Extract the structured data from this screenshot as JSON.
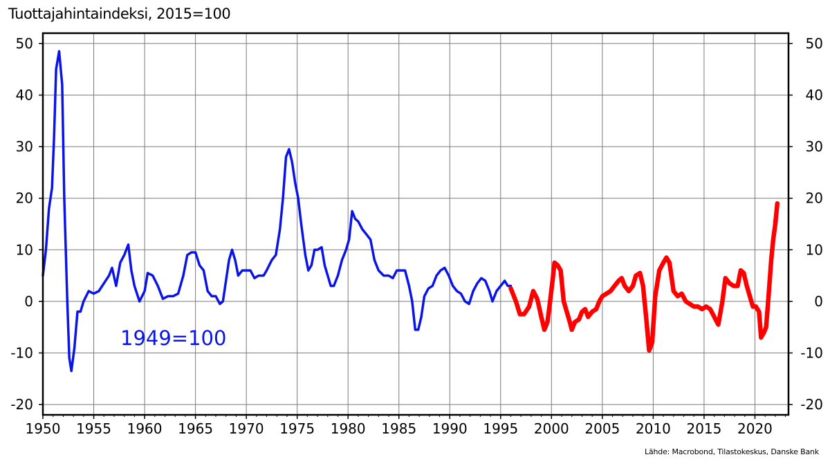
{
  "chart_data": {
    "type": "line",
    "title": "Tuottajahintaindeksi, 2015=100",
    "source": "Lähde: Macrobond, Tilastokeskus, Danske Bank",
    "annotation": "1949=100",
    "xlabel": "",
    "ylabel": "",
    "xlim": [
      1950,
      2023.3
    ],
    "ylim": [
      -22,
      52
    ],
    "grid": true,
    "axes": "left and right",
    "x_ticks": [
      1950,
      1955,
      1960,
      1965,
      1970,
      1975,
      1980,
      1985,
      1990,
      1995,
      2000,
      2005,
      2010,
      2015,
      2020
    ],
    "x_tick_labels": [
      "1950",
      "1955",
      "1960",
      "1965",
      "1970",
      "1975",
      "1980",
      "1985",
      "1990",
      "1995",
      "2000",
      "2005",
      "2010",
      "2015",
      "2020"
    ],
    "y_ticks": [
      50,
      40,
      30,
      20,
      10,
      0,
      -10,
      -20
    ],
    "y_tick_labels": [
      "50",
      "40",
      "30",
      "20",
      "10",
      "0",
      "-10",
      "-20"
    ],
    "colors": {
      "series_1949": "#0a14e6",
      "series_2015": "#ff0000"
    },
    "series": [
      {
        "points": [
          [
            1950.0,
            5
          ],
          [
            1950.3,
            10
          ],
          [
            1950.6,
            18
          ],
          [
            1950.9,
            22
          ],
          [
            1951.1,
            32
          ],
          [
            1951.3,
            45
          ],
          [
            1951.6,
            48.5
          ],
          [
            1951.9,
            42
          ],
          [
            1952.1,
            20
          ],
          [
            1952.4,
            0
          ],
          [
            1952.6,
            -11
          ],
          [
            1952.8,
            -13.5
          ],
          [
            1953.1,
            -9
          ],
          [
            1953.4,
            -2
          ],
          [
            1953.7,
            -2
          ],
          [
            1954.0,
            0
          ],
          [
            1954.5,
            2
          ],
          [
            1955.0,
            1.5
          ],
          [
            1955.5,
            2
          ],
          [
            1956.0,
            3.5
          ],
          [
            1956.5,
            5
          ],
          [
            1956.8,
            6.5
          ],
          [
            1957.2,
            3
          ],
          [
            1957.6,
            7.5
          ],
          [
            1958.0,
            9
          ],
          [
            1958.4,
            11
          ],
          [
            1958.7,
            6
          ],
          [
            1959.0,
            3
          ],
          [
            1959.5,
            0
          ],
          [
            1960.0,
            2
          ],
          [
            1960.3,
            5.5
          ],
          [
            1960.8,
            5
          ],
          [
            1961.3,
            3
          ],
          [
            1961.8,
            0.5
          ],
          [
            1962.3,
            1
          ],
          [
            1962.8,
            1
          ],
          [
            1963.3,
            1.5
          ],
          [
            1963.8,
            5
          ],
          [
            1964.2,
            9
          ],
          [
            1964.6,
            9.5
          ],
          [
            1965.0,
            9.5
          ],
          [
            1965.4,
            7
          ],
          [
            1965.8,
            6
          ],
          [
            1966.2,
            2
          ],
          [
            1966.6,
            1
          ],
          [
            1967.0,
            1
          ],
          [
            1967.4,
            -0.5
          ],
          [
            1967.7,
            0
          ],
          [
            1968.0,
            4
          ],
          [
            1968.3,
            8
          ],
          [
            1968.6,
            10
          ],
          [
            1968.9,
            8
          ],
          [
            1969.2,
            5
          ],
          [
            1969.6,
            6
          ],
          [
            1970.0,
            6
          ],
          [
            1970.4,
            6
          ],
          [
            1970.8,
            4.5
          ],
          [
            1971.2,
            5
          ],
          [
            1971.7,
            5
          ],
          [
            1972.0,
            6
          ],
          [
            1972.5,
            8
          ],
          [
            1972.9,
            9
          ],
          [
            1973.3,
            14
          ],
          [
            1973.6,
            20
          ],
          [
            1973.9,
            28
          ],
          [
            1974.2,
            29.5
          ],
          [
            1974.5,
            27
          ],
          [
            1974.8,
            23
          ],
          [
            1975.1,
            20
          ],
          [
            1975.4,
            15
          ],
          [
            1975.8,
            9
          ],
          [
            1976.1,
            6
          ],
          [
            1976.4,
            7
          ],
          [
            1976.7,
            10
          ],
          [
            1977.0,
            10
          ],
          [
            1977.4,
            10.5
          ],
          [
            1977.7,
            7
          ],
          [
            1978.0,
            5
          ],
          [
            1978.3,
            3
          ],
          [
            1978.6,
            3
          ],
          [
            1979.0,
            5
          ],
          [
            1979.4,
            8
          ],
          [
            1979.8,
            10
          ],
          [
            1980.1,
            12
          ],
          [
            1980.4,
            17.5
          ],
          [
            1980.7,
            16
          ],
          [
            1981.0,
            15.5
          ],
          [
            1981.4,
            14
          ],
          [
            1981.8,
            13
          ],
          [
            1982.2,
            12
          ],
          [
            1982.6,
            8
          ],
          [
            1983.0,
            6
          ],
          [
            1983.5,
            5
          ],
          [
            1984.0,
            5
          ],
          [
            1984.4,
            4.5
          ],
          [
            1984.8,
            6
          ],
          [
            1985.2,
            6
          ],
          [
            1985.6,
            6
          ],
          [
            1986.0,
            3
          ],
          [
            1986.3,
            0
          ],
          [
            1986.6,
            -5.5
          ],
          [
            1986.9,
            -5.5
          ],
          [
            1987.2,
            -3
          ],
          [
            1987.5,
            1
          ],
          [
            1987.9,
            2.5
          ],
          [
            1988.3,
            3
          ],
          [
            1988.7,
            5
          ],
          [
            1989.1,
            6
          ],
          [
            1989.5,
            6.5
          ],
          [
            1989.9,
            5
          ],
          [
            1990.3,
            3
          ],
          [
            1990.7,
            2
          ],
          [
            1991.1,
            1.5
          ],
          [
            1991.5,
            0
          ],
          [
            1991.9,
            -0.5
          ],
          [
            1992.3,
            2
          ],
          [
            1992.7,
            3.5
          ],
          [
            1993.1,
            4.5
          ],
          [
            1993.5,
            4
          ],
          [
            1993.9,
            2
          ],
          [
            1994.2,
            0
          ],
          [
            1994.6,
            2
          ],
          [
            1995.0,
            3
          ],
          [
            1995.4,
            4
          ],
          [
            1995.7,
            3
          ],
          [
            1996.0,
            3
          ]
        ]
      },
      {
        "points": [
          [
            1996.0,
            2.5
          ],
          [
            1996.5,
            0
          ],
          [
            1996.9,
            -2.5
          ],
          [
            1997.3,
            -2.5
          ],
          [
            1997.8,
            -1
          ],
          [
            1998.2,
            2
          ],
          [
            1998.6,
            0.5
          ],
          [
            1999.0,
            -3
          ],
          [
            1999.3,
            -5.5
          ],
          [
            1999.6,
            -4
          ],
          [
            1999.8,
            -1
          ],
          [
            2000.1,
            4
          ],
          [
            2000.3,
            7.5
          ],
          [
            2000.6,
            7
          ],
          [
            2000.9,
            6
          ],
          [
            2001.2,
            0
          ],
          [
            2001.5,
            -2
          ],
          [
            2001.8,
            -4
          ],
          [
            2002.0,
            -5.5
          ],
          [
            2002.3,
            -4
          ],
          [
            2002.7,
            -3.5
          ],
          [
            2003.0,
            -2
          ],
          [
            2003.3,
            -1.5
          ],
          [
            2003.6,
            -3
          ],
          [
            2004.0,
            -2
          ],
          [
            2004.4,
            -1.5
          ],
          [
            2004.7,
            0
          ],
          [
            2005.0,
            1
          ],
          [
            2005.4,
            1.5
          ],
          [
            2005.8,
            2
          ],
          [
            2006.2,
            3
          ],
          [
            2006.6,
            4
          ],
          [
            2006.9,
            4.5
          ],
          [
            2007.2,
            3
          ],
          [
            2007.6,
            2
          ],
          [
            2008.0,
            3
          ],
          [
            2008.3,
            5
          ],
          [
            2008.7,
            5.5
          ],
          [
            2009.0,
            3
          ],
          [
            2009.3,
            -3
          ],
          [
            2009.6,
            -9.5
          ],
          [
            2009.9,
            -8
          ],
          [
            2010.2,
            1
          ],
          [
            2010.6,
            6
          ],
          [
            2011.0,
            7.5
          ],
          [
            2011.3,
            8.5
          ],
          [
            2011.6,
            7.5
          ],
          [
            2012.0,
            2
          ],
          [
            2012.4,
            1
          ],
          [
            2012.8,
            1.5
          ],
          [
            2013.2,
            0
          ],
          [
            2013.6,
            -0.5
          ],
          [
            2014.0,
            -1
          ],
          [
            2014.4,
            -1
          ],
          [
            2014.8,
            -1.5
          ],
          [
            2015.2,
            -1
          ],
          [
            2015.6,
            -1.5
          ],
          [
            2016.0,
            -3
          ],
          [
            2016.4,
            -4.5
          ],
          [
            2016.8,
            0
          ],
          [
            2017.1,
            4.5
          ],
          [
            2017.5,
            3.5
          ],
          [
            2017.9,
            3
          ],
          [
            2018.3,
            3
          ],
          [
            2018.6,
            6
          ],
          [
            2018.9,
            5.5
          ],
          [
            2019.2,
            3
          ],
          [
            2019.5,
            1
          ],
          [
            2019.8,
            -1
          ],
          [
            2020.1,
            -1
          ],
          [
            2020.4,
            -2
          ],
          [
            2020.6,
            -7
          ],
          [
            2020.9,
            -6
          ],
          [
            2021.1,
            -5
          ],
          [
            2021.3,
            0
          ],
          [
            2021.6,
            8
          ],
          [
            2021.8,
            12
          ],
          [
            2022.0,
            15
          ],
          [
            2022.2,
            19
          ]
        ]
      }
    ]
  }
}
